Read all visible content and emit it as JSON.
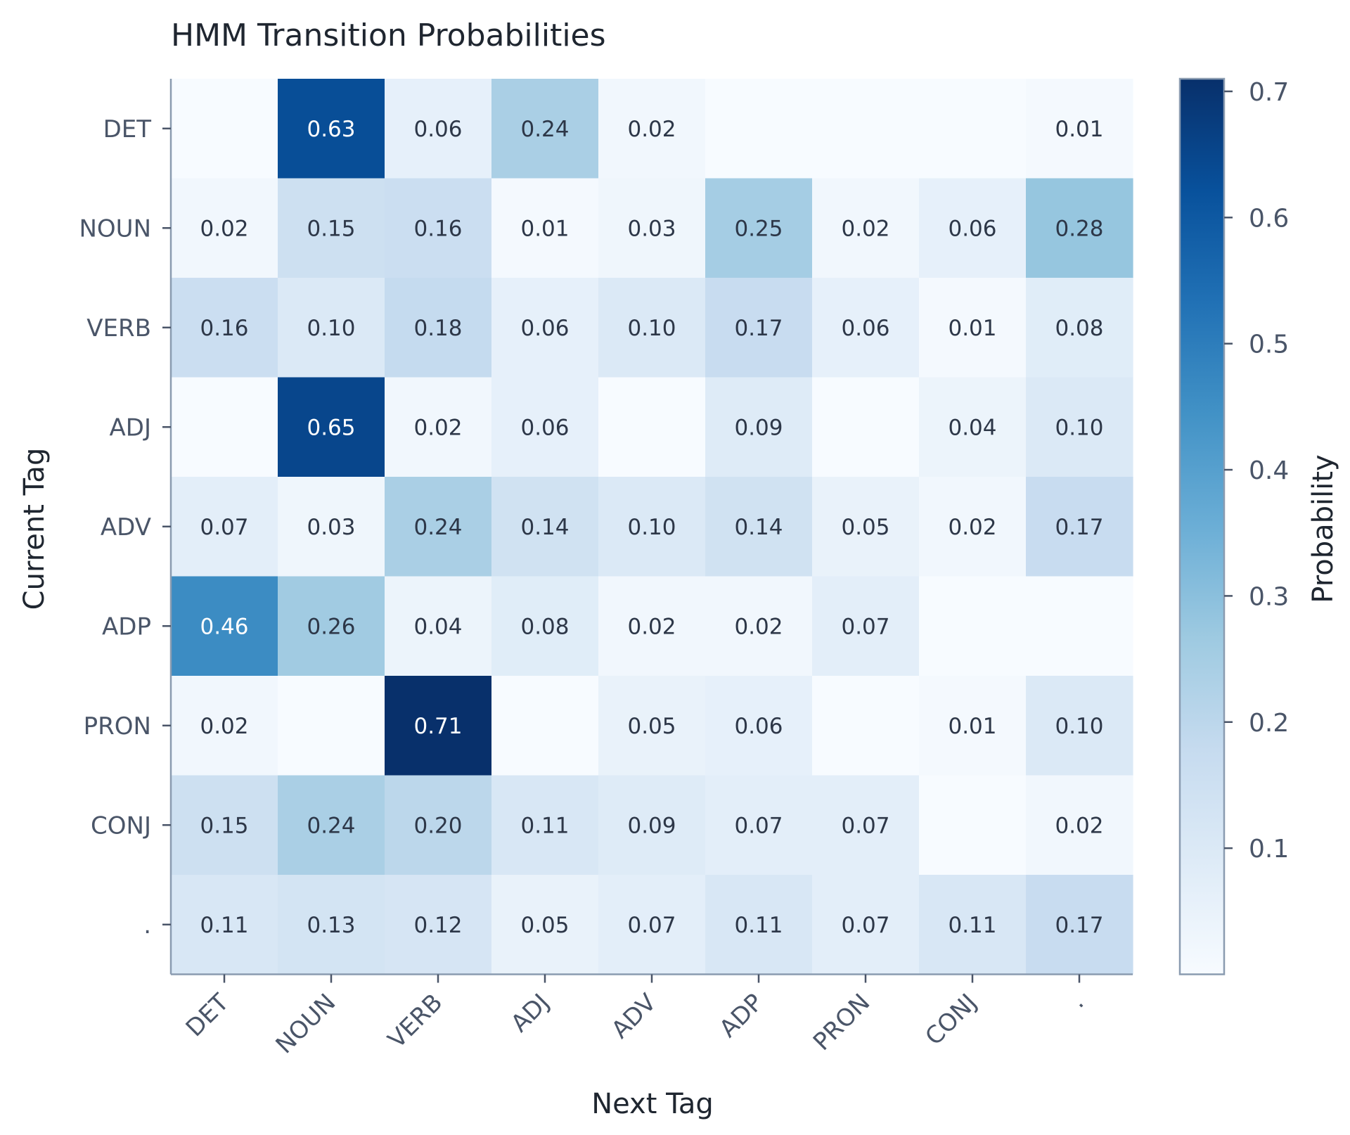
{
  "chart_data": {
    "type": "heatmap",
    "title": "HMM Transition Probabilities",
    "xlabel": "Next Tag",
    "ylabel": "Current Tag",
    "x_categories": [
      "DET",
      "NOUN",
      "VERB",
      "ADJ",
      "ADV",
      "ADP",
      "PRON",
      "CONJ",
      "."
    ],
    "y_categories": [
      "DET",
      "NOUN",
      "VERB",
      "ADJ",
      "ADV",
      "ADP",
      "PRON",
      "CONJ",
      "."
    ],
    "values": [
      [
        0.0,
        0.63,
        0.06,
        0.24,
        0.02,
        0.0,
        0.0,
        0.0,
        0.01
      ],
      [
        0.02,
        0.15,
        0.16,
        0.01,
        0.03,
        0.25,
        0.02,
        0.06,
        0.28
      ],
      [
        0.16,
        0.1,
        0.18,
        0.06,
        0.1,
        0.17,
        0.06,
        0.01,
        0.08
      ],
      [
        0.0,
        0.65,
        0.02,
        0.06,
        0.0,
        0.09,
        0.0,
        0.04,
        0.1
      ],
      [
        0.07,
        0.03,
        0.24,
        0.14,
        0.1,
        0.14,
        0.05,
        0.02,
        0.17
      ],
      [
        0.46,
        0.26,
        0.04,
        0.08,
        0.02,
        0.02,
        0.07,
        0.0,
        0.0
      ],
      [
        0.02,
        0.0,
        0.71,
        0.0,
        0.05,
        0.06,
        0.0,
        0.01,
        0.1
      ],
      [
        0.15,
        0.24,
        0.2,
        0.11,
        0.09,
        0.07,
        0.07,
        0.0,
        0.02
      ],
      [
        0.11,
        0.13,
        0.12,
        0.05,
        0.07,
        0.11,
        0.07,
        0.11,
        0.17
      ]
    ],
    "labels": [
      [
        "",
        "0.63",
        "0.06",
        "0.24",
        "0.02",
        "",
        "",
        "",
        "0.01"
      ],
      [
        "0.02",
        "0.15",
        "0.16",
        "0.01",
        "0.03",
        "0.25",
        "0.02",
        "0.06",
        "0.28"
      ],
      [
        "0.16",
        "0.10",
        "0.18",
        "0.06",
        "0.10",
        "0.17",
        "0.06",
        "0.01",
        "0.08"
      ],
      [
        "",
        "0.65",
        "0.02",
        "0.06",
        "",
        "0.09",
        "",
        "0.04",
        "0.10"
      ],
      [
        "0.07",
        "0.03",
        "0.24",
        "0.14",
        "0.10",
        "0.14",
        "0.05",
        "0.02",
        "0.17"
      ],
      [
        "0.46",
        "0.26",
        "0.04",
        "0.08",
        "0.02",
        "0.02",
        "0.07",
        "",
        ""
      ],
      [
        "0.02",
        "",
        "0.71",
        "",
        "0.05",
        "0.06",
        "",
        "0.01",
        "0.10"
      ],
      [
        "0.15",
        "0.24",
        "0.20",
        "0.11",
        "0.09",
        "0.07",
        "0.07",
        "",
        "0.02"
      ],
      [
        "0.11",
        "0.13",
        "0.12",
        "0.05",
        "0.07",
        "0.11",
        "0.07",
        "0.11",
        "0.17"
      ]
    ],
    "colorbar": {
      "label": "Probability",
      "range": [
        0,
        0.71
      ],
      "ticks": [
        "0.1",
        "0.2",
        "0.3",
        "0.4",
        "0.5",
        "0.6",
        "0.7"
      ],
      "colormap": "Blues",
      "colors": [
        "#f7fbff",
        "#deebf7",
        "#c6dbef",
        "#9ecae1",
        "#6baed6",
        "#4292c6",
        "#2171b5",
        "#08519c",
        "#08306b"
      ]
    },
    "grid": false,
    "legend": "right"
  }
}
